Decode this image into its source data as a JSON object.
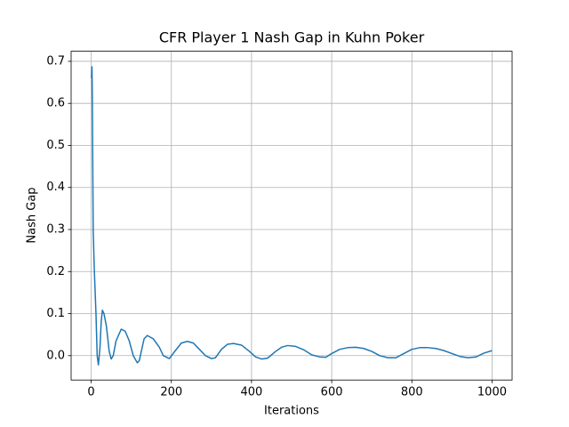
{
  "chart_data": {
    "type": "line",
    "title": "CFR Player 1 Nash Gap in Kuhn Poker",
    "x_label": "Iterations",
    "y_label": "Nash Gap",
    "color": "#1f77b4",
    "grid": true,
    "x": [
      1,
      2,
      3,
      5,
      8,
      12,
      15,
      18,
      22,
      25,
      28,
      32,
      38,
      45,
      50,
      55,
      62,
      75,
      85,
      95,
      105,
      115,
      120,
      132,
      140,
      155,
      170,
      180,
      195,
      210,
      225,
      240,
      255,
      270,
      285,
      300,
      310,
      325,
      340,
      355,
      375,
      395,
      410,
      425,
      440,
      460,
      475,
      490,
      510,
      530,
      550,
      570,
      585,
      600,
      620,
      640,
      660,
      680,
      700,
      720,
      740,
      760,
      780,
      800,
      820,
      840,
      860,
      880,
      900,
      920,
      940,
      960,
      980,
      1000
    ],
    "values": [
      0.66,
      0.687,
      0.6,
      0.3,
      0.2,
      0.1,
      0.0,
      -0.022,
      0.02,
      0.08,
      0.108,
      0.1,
      0.07,
      0.01,
      -0.008,
      0.0,
      0.035,
      0.063,
      0.058,
      0.035,
      0.0,
      -0.017,
      -0.012,
      0.04,
      0.048,
      0.04,
      0.02,
      0.0,
      -0.007,
      0.012,
      0.03,
      0.034,
      0.03,
      0.015,
      0.0,
      -0.007,
      -0.005,
      0.015,
      0.027,
      0.029,
      0.025,
      0.01,
      -0.003,
      -0.008,
      -0.006,
      0.01,
      0.02,
      0.024,
      0.022,
      0.014,
      0.002,
      -0.003,
      -0.004,
      0.005,
      0.015,
      0.019,
      0.02,
      0.017,
      0.01,
      0.0,
      -0.005,
      -0.005,
      0.005,
      0.015,
      0.019,
      0.019,
      0.017,
      0.012,
      0.005,
      -0.002,
      -0.005,
      -0.003,
      0.006,
      0.012
    ],
    "xlim": [
      -50,
      1050
    ],
    "xticks": [
      0,
      200,
      400,
      600,
      800,
      1000
    ],
    "ylim": [
      -0.058,
      0.724
    ],
    "yticks": [
      {
        "value": 0,
        "label": "0.0"
      },
      0.1,
      0.2,
      0.3,
      0.4,
      0.5,
      0.6,
      0.7
    ]
  }
}
